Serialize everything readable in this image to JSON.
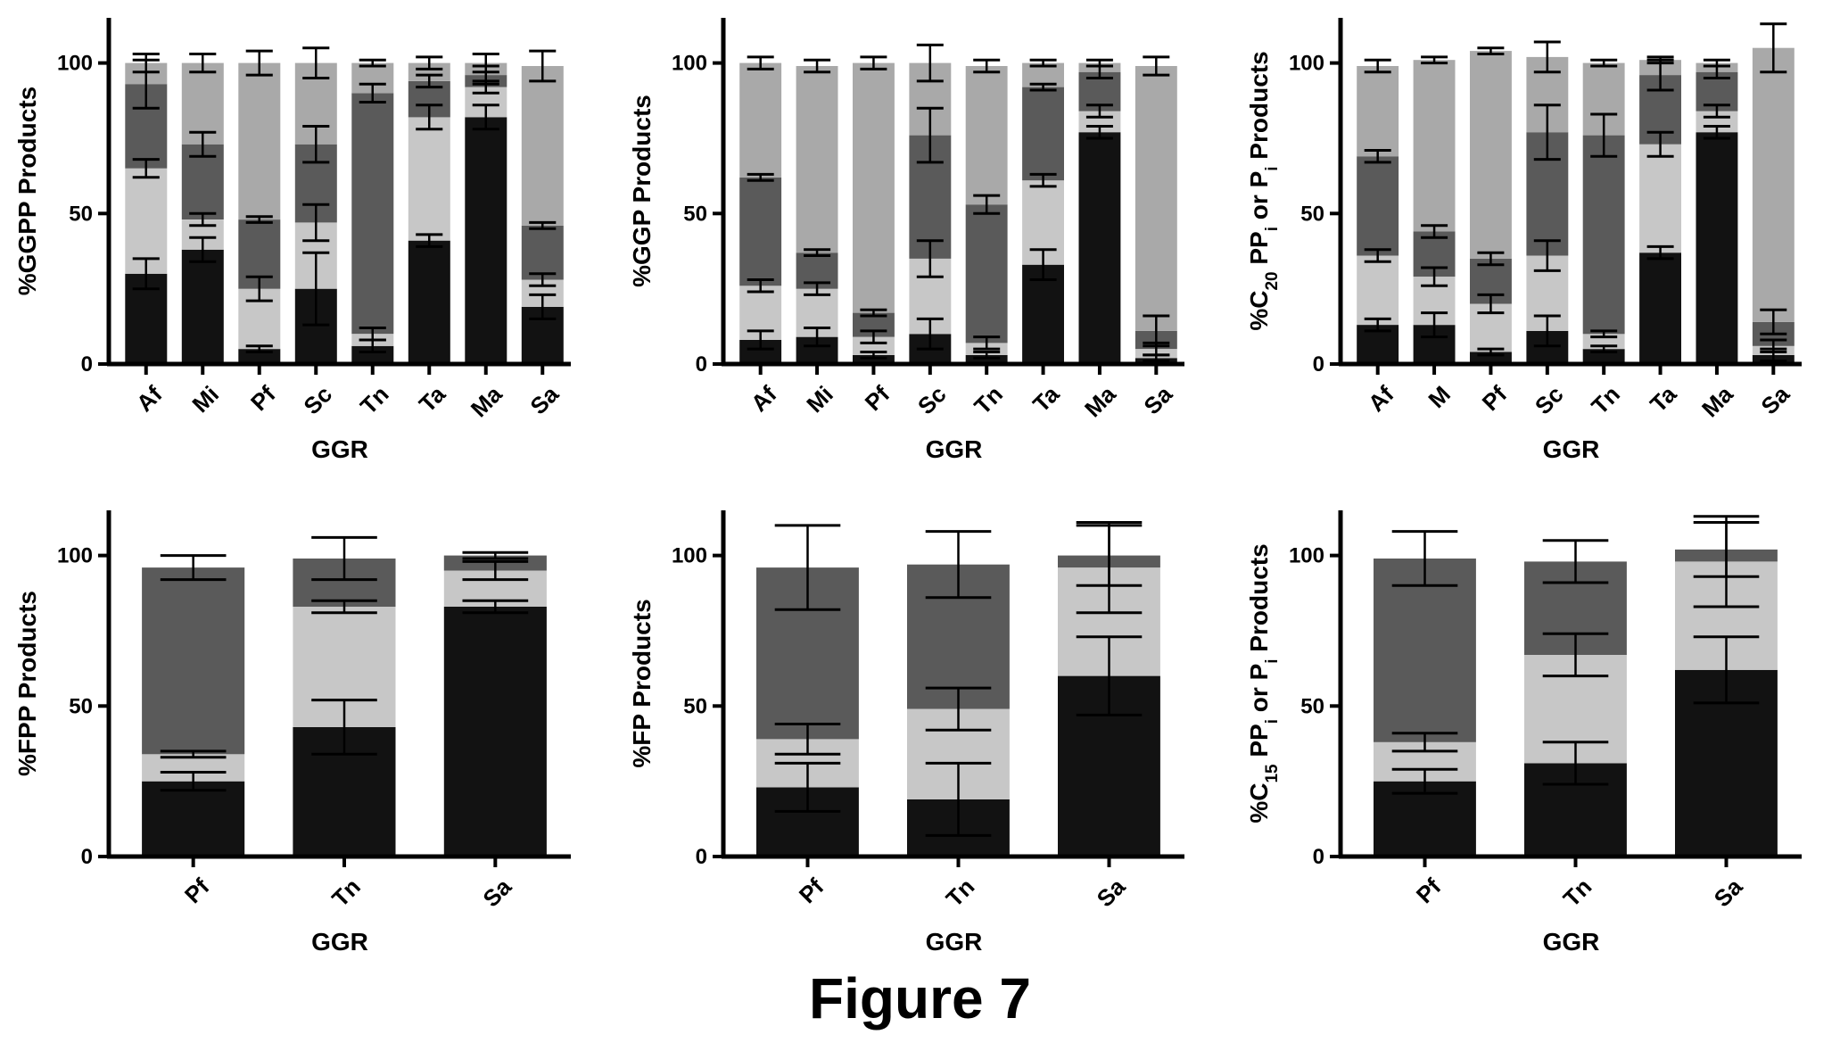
{
  "figure_title": "Figure 7",
  "colors": {
    "c0": "#121212",
    "c1": "#c7c7c7",
    "c2": "#5a5a5a",
    "c3": "#a9a9a9",
    "c4": "#d0d0d0",
    "axis": "#000000"
  },
  "chart_data": [
    {
      "type": "bar",
      "stacked": true,
      "ylabel": "%GGPP Products",
      "xlabel": "GGR",
      "ylim": [
        0,
        115
      ],
      "yticks": [
        0,
        50,
        100
      ],
      "tick_rotation": -45,
      "categories": [
        "Af",
        "Mi",
        "Pf",
        "Sc",
        "Tn",
        "Ta",
        "Ma",
        "Sa"
      ],
      "stacks": [
        [
          {
            "v": 30,
            "err": 5,
            "c": "c0"
          },
          {
            "v": 35,
            "err": 3,
            "c": "c1"
          },
          {
            "v": 28,
            "err": 8,
            "c": "c2"
          },
          {
            "v": 7,
            "err": 3,
            "c": "c3"
          }
        ],
        [
          {
            "v": 38,
            "err": 4,
            "c": "c0"
          },
          {
            "v": 10,
            "err": 2,
            "c": "c1"
          },
          {
            "v": 25,
            "err": 4,
            "c": "c2"
          },
          {
            "v": 27,
            "err": 3,
            "c": "c3"
          }
        ],
        [
          {
            "v": 5,
            "err": 1,
            "c": "c0"
          },
          {
            "v": 20,
            "err": 4,
            "c": "c1"
          },
          {
            "v": 23,
            "err": 1,
            "c": "c2"
          },
          {
            "v": 52,
            "err": 4,
            "c": "c3"
          }
        ],
        [
          {
            "v": 25,
            "err": 12,
            "c": "c0"
          },
          {
            "v": 22,
            "err": 6,
            "c": "c1"
          },
          {
            "v": 26,
            "err": 6,
            "c": "c2"
          },
          {
            "v": 27,
            "err": 5,
            "c": "c3"
          }
        ],
        [
          {
            "v": 6,
            "err": 2,
            "c": "c0"
          },
          {
            "v": 4,
            "err": 2,
            "c": "c1"
          },
          {
            "v": 80,
            "err": 3,
            "c": "c2"
          },
          {
            "v": 10,
            "err": 1,
            "c": "c3"
          }
        ],
        [
          {
            "v": 41,
            "err": 2,
            "c": "c0"
          },
          {
            "v": 41,
            "err": 4,
            "c": "c1"
          },
          {
            "v": 12,
            "err": 2,
            "c": "c2"
          },
          {
            "v": 6,
            "err": 2,
            "c": "c3"
          }
        ],
        [
          {
            "v": 82,
            "err": 4,
            "c": "c0"
          },
          {
            "v": 10,
            "err": 2,
            "c": "c1"
          },
          {
            "v": 4,
            "err": 3,
            "c": "c2"
          },
          {
            "v": 4,
            "err": 3,
            "c": "c3"
          }
        ],
        [
          {
            "v": 19,
            "err": 4,
            "c": "c0"
          },
          {
            "v": 9,
            "err": 2,
            "c": "c1"
          },
          {
            "v": 18,
            "err": 1,
            "c": "c2"
          },
          {
            "v": 53,
            "err": 5,
            "c": "c3"
          }
        ]
      ]
    },
    {
      "type": "bar",
      "stacked": true,
      "ylabel": "%GGP Products",
      "xlabel": "GGR",
      "ylim": [
        0,
        115
      ],
      "yticks": [
        0,
        50,
        100
      ],
      "tick_rotation": -45,
      "categories": [
        "Af",
        "Mi",
        "Pf",
        "Sc",
        "Tn",
        "Ta",
        "Ma",
        "Sa"
      ],
      "stacks": [
        [
          {
            "v": 8,
            "err": 3,
            "c": "c0"
          },
          {
            "v": 18,
            "err": 2,
            "c": "c1"
          },
          {
            "v": 36,
            "err": 1,
            "c": "c2"
          },
          {
            "v": 38,
            "err": 2,
            "c": "c3"
          }
        ],
        [
          {
            "v": 9,
            "err": 3,
            "c": "c0"
          },
          {
            "v": 16,
            "err": 2,
            "c": "c1"
          },
          {
            "v": 12,
            "err": 1,
            "c": "c2"
          },
          {
            "v": 62,
            "err": 2,
            "c": "c3"
          }
        ],
        [
          {
            "v": 3,
            "err": 1,
            "c": "c0"
          },
          {
            "v": 6,
            "err": 2,
            "c": "c1"
          },
          {
            "v": 8,
            "err": 1,
            "c": "c2"
          },
          {
            "v": 83,
            "err": 2,
            "c": "c3"
          }
        ],
        [
          {
            "v": 10,
            "err": 5,
            "c": "c0"
          },
          {
            "v": 25,
            "err": 6,
            "c": "c1"
          },
          {
            "v": 41,
            "err": 9,
            "c": "c2"
          },
          {
            "v": 24,
            "err": 6,
            "c": "c3"
          }
        ],
        [
          {
            "v": 3,
            "err": 1,
            "c": "c0"
          },
          {
            "v": 4,
            "err": 2,
            "c": "c1"
          },
          {
            "v": 46,
            "err": 3,
            "c": "c2"
          },
          {
            "v": 46,
            "err": 2,
            "c": "c3"
          }
        ],
        [
          {
            "v": 33,
            "err": 5,
            "c": "c0"
          },
          {
            "v": 28,
            "err": 2,
            "c": "c1"
          },
          {
            "v": 31,
            "err": 1,
            "c": "c2"
          },
          {
            "v": 8,
            "err": 1,
            "c": "c3"
          }
        ],
        [
          {
            "v": 77,
            "err": 2,
            "c": "c0"
          },
          {
            "v": 7,
            "err": 2,
            "c": "c1"
          },
          {
            "v": 13,
            "err": 2,
            "c": "c2"
          },
          {
            "v": 3,
            "err": 1,
            "c": "c3"
          }
        ],
        [
          {
            "v": 2,
            "err": 1,
            "c": "c0"
          },
          {
            "v": 3,
            "err": 2,
            "c": "c1"
          },
          {
            "v": 6,
            "err": 5,
            "c": "c2"
          },
          {
            "v": 88,
            "err": 3,
            "c": "c3"
          }
        ]
      ]
    },
    {
      "type": "bar",
      "stacked": true,
      "ylabel_parts": [
        {
          "t": "%C",
          "s": "n"
        },
        {
          "t": "20",
          "s": "sub"
        },
        {
          "t": " PP",
          "s": "n"
        },
        {
          "t": "i",
          "s": "sub"
        },
        {
          "t": " or P",
          "s": "n"
        },
        {
          "t": "i",
          "s": "sub"
        },
        {
          "t": " Products",
          "s": "n"
        }
      ],
      "xlabel": "GGR",
      "ylim": [
        0,
        115
      ],
      "yticks": [
        0,
        50,
        100
      ],
      "tick_rotation": -45,
      "categories": [
        "Af",
        "M",
        "Pf",
        "Sc",
        "Tn",
        "Ta",
        "Ma",
        "Sa"
      ],
      "stacks": [
        [
          {
            "v": 13,
            "err": 2,
            "c": "c0"
          },
          {
            "v": 23,
            "err": 2,
            "c": "c1"
          },
          {
            "v": 33,
            "err": 2,
            "c": "c2"
          },
          {
            "v": 30,
            "err": 2,
            "c": "c3"
          }
        ],
        [
          {
            "v": 13,
            "err": 4,
            "c": "c0"
          },
          {
            "v": 16,
            "err": 3,
            "c": "c1"
          },
          {
            "v": 15,
            "err": 2,
            "c": "c2"
          },
          {
            "v": 57,
            "err": 1,
            "c": "c3"
          }
        ],
        [
          {
            "v": 4,
            "err": 1,
            "c": "c0"
          },
          {
            "v": 16,
            "err": 3,
            "c": "c1"
          },
          {
            "v": 15,
            "err": 2,
            "c": "c2"
          },
          {
            "v": 69,
            "err": 1,
            "c": "c3"
          }
        ],
        [
          {
            "v": 11,
            "err": 5,
            "c": "c0"
          },
          {
            "v": 25,
            "err": 5,
            "c": "c1"
          },
          {
            "v": 41,
            "err": 9,
            "c": "c2"
          },
          {
            "v": 25,
            "err": 5,
            "c": "c3"
          }
        ],
        [
          {
            "v": 5,
            "err": 1,
            "c": "c0"
          },
          {
            "v": 5,
            "err": 1,
            "c": "c1"
          },
          {
            "v": 66,
            "err": 7,
            "c": "c2"
          },
          {
            "v": 24,
            "err": 1,
            "c": "c3"
          }
        ],
        [
          {
            "v": 37,
            "err": 2,
            "c": "c0"
          },
          {
            "v": 36,
            "err": 4,
            "c": "c1"
          },
          {
            "v": 23,
            "err": 5,
            "c": "c2"
          },
          {
            "v": 5,
            "err": 1,
            "c": "c3"
          }
        ],
        [
          {
            "v": 77,
            "err": 2,
            "c": "c0"
          },
          {
            "v": 7,
            "err": 2,
            "c": "c1"
          },
          {
            "v": 13,
            "err": 2,
            "c": "c2"
          },
          {
            "v": 3,
            "err": 1,
            "c": "c3"
          }
        ],
        [
          {
            "v": 3,
            "err": 2,
            "c": "c0"
          },
          {
            "v": 3,
            "err": 2,
            "c": "c1"
          },
          {
            "v": 8,
            "err": 4,
            "c": "c2"
          },
          {
            "v": 91,
            "err": 8,
            "c": "c3"
          }
        ]
      ]
    },
    {
      "type": "bar",
      "stacked": true,
      "ylabel": "%FPP Products",
      "xlabel": "GGR",
      "ylim": [
        0,
        115
      ],
      "yticks": [
        0,
        50,
        100
      ],
      "tick_rotation": -45,
      "categories": [
        "Pf",
        "Tn",
        "Sa"
      ],
      "stacks": [
        [
          {
            "v": 25,
            "err": 3,
            "c": "c0"
          },
          {
            "v": 9,
            "err": 1,
            "c": "c1"
          },
          {
            "v": 62,
            "err": 4,
            "c": "c2"
          }
        ],
        [
          {
            "v": 43,
            "err": 9,
            "c": "c0"
          },
          {
            "v": 40,
            "err": 2,
            "c": "c1"
          },
          {
            "v": 16,
            "err": 7,
            "c": "c2"
          }
        ],
        [
          {
            "v": 83,
            "err": 2,
            "c": "c0"
          },
          {
            "v": 12,
            "err": 3,
            "c": "c1"
          },
          {
            "v": 5,
            "err": 1,
            "c": "c2"
          }
        ]
      ]
    },
    {
      "type": "bar",
      "stacked": true,
      "ylabel": "%FP Products",
      "xlabel": "GGR",
      "ylim": [
        0,
        115
      ],
      "yticks": [
        0,
        50,
        100
      ],
      "tick_rotation": -45,
      "categories": [
        "Pf",
        "Tn",
        "Sa"
      ],
      "stacks": [
        [
          {
            "v": 23,
            "err": 8,
            "c": "c0"
          },
          {
            "v": 16,
            "err": 5,
            "c": "c1"
          },
          {
            "v": 57,
            "err": 14,
            "c": "c2"
          }
        ],
        [
          {
            "v": 19,
            "err": 12,
            "c": "c0"
          },
          {
            "v": 30,
            "err": 7,
            "c": "c1"
          },
          {
            "v": 48,
            "err": 11,
            "c": "c2"
          }
        ],
        [
          {
            "v": 60,
            "err": 13,
            "c": "c0"
          },
          {
            "v": 36,
            "err": 15,
            "c": "c1"
          },
          {
            "v": 4,
            "err": 10,
            "c": "c2"
          }
        ]
      ]
    },
    {
      "type": "bar",
      "stacked": true,
      "ylabel_parts": [
        {
          "t": "%C",
          "s": "n"
        },
        {
          "t": "15",
          "s": "sub"
        },
        {
          "t": " PP",
          "s": "n"
        },
        {
          "t": "i",
          "s": "sub"
        },
        {
          "t": " or P",
          "s": "n"
        },
        {
          "t": "i",
          "s": "sub"
        },
        {
          "t": " Products",
          "s": "n"
        }
      ],
      "xlabel": "GGR",
      "ylim": [
        0,
        115
      ],
      "yticks": [
        0,
        50,
        100
      ],
      "tick_rotation": -45,
      "categories": [
        "Pf",
        "Tn",
        "Sa"
      ],
      "stacks": [
        [
          {
            "v": 25,
            "err": 4,
            "c": "c0"
          },
          {
            "v": 13,
            "err": 3,
            "c": "c1"
          },
          {
            "v": 61,
            "err": 9,
            "c": "c2"
          }
        ],
        [
          {
            "v": 31,
            "err": 7,
            "c": "c0"
          },
          {
            "v": 36,
            "err": 7,
            "c": "c1"
          },
          {
            "v": 31,
            "err": 7,
            "c": "c2"
          }
        ],
        [
          {
            "v": 62,
            "err": 11,
            "c": "c0"
          },
          {
            "v": 36,
            "err": 15,
            "c": "c1"
          },
          {
            "v": 4,
            "err": 9,
            "c": "c2"
          }
        ]
      ]
    }
  ]
}
